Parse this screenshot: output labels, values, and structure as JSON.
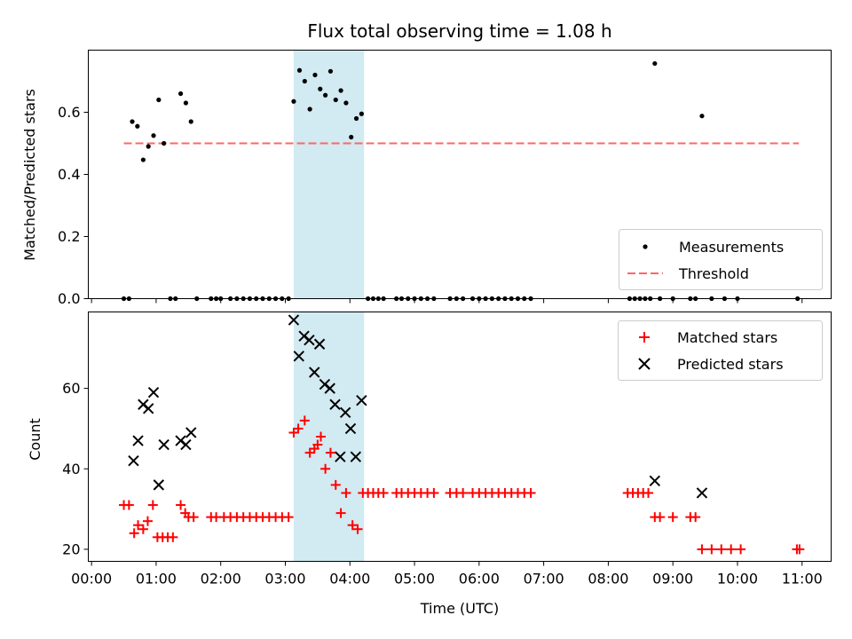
{
  "chart_data": [
    {
      "type": "scatter",
      "title": "Flux total observing time = 1.08 h",
      "ylabel": "Matched/Predicted stars",
      "xlabel": "",
      "ylim": [
        0,
        0.8
      ],
      "yticks": [
        0.0,
        0.2,
        0.4,
        0.6
      ],
      "ytick_labels": [
        "0.0",
        "0.2",
        "0.4",
        "0.6"
      ],
      "xlim_hours": [
        -0.05,
        11.45
      ],
      "highlight_span_hours": [
        3.13,
        4.22
      ],
      "highlight_color": "#add8e6",
      "threshold": {
        "name": "Threshold",
        "y": 0.5,
        "x_hours": [
          0.5,
          10.95
        ],
        "color": "#ff6666",
        "style": "dashed"
      },
      "legend": {
        "position": "lower-right",
        "entries": [
          "Measurements",
          "Threshold"
        ]
      },
      "series": [
        {
          "name": "Measurements",
          "color": "#000000",
          "marker": "dot",
          "points": [
            [
              0.5,
              0
            ],
            [
              0.58,
              0
            ],
            [
              0.63,
              0.57
            ],
            [
              0.71,
              0.555
            ],
            [
              0.8,
              0.447
            ],
            [
              0.88,
              0.49
            ],
            [
              0.96,
              0.525
            ],
            [
              1.04,
              0.64
            ],
            [
              1.12,
              0.5
            ],
            [
              1.22,
              0
            ],
            [
              1.3,
              0
            ],
            [
              1.38,
              0.66
            ],
            [
              1.46,
              0.63
            ],
            [
              1.54,
              0.57
            ],
            [
              1.63,
              0
            ],
            [
              1.85,
              0
            ],
            [
              1.93,
              0
            ],
            [
              2.0,
              0
            ],
            [
              2.15,
              0
            ],
            [
              2.25,
              0
            ],
            [
              2.35,
              0
            ],
            [
              2.45,
              0
            ],
            [
              2.55,
              0
            ],
            [
              2.65,
              0
            ],
            [
              2.75,
              0
            ],
            [
              2.85,
              0
            ],
            [
              2.95,
              0
            ],
            [
              3.05,
              0
            ],
            [
              3.13,
              0.635
            ],
            [
              3.22,
              0.735
            ],
            [
              3.3,
              0.7
            ],
            [
              3.38,
              0.61
            ],
            [
              3.46,
              0.72
            ],
            [
              3.54,
              0.675
            ],
            [
              3.62,
              0.655
            ],
            [
              3.7,
              0.732
            ],
            [
              3.78,
              0.64
            ],
            [
              3.86,
              0.67
            ],
            [
              3.94,
              0.63
            ],
            [
              4.02,
              0.52
            ],
            [
              4.1,
              0.58
            ],
            [
              4.18,
              0.595
            ],
            [
              4.28,
              0
            ],
            [
              4.36,
              0
            ],
            [
              4.44,
              0
            ],
            [
              4.52,
              0
            ],
            [
              4.72,
              0
            ],
            [
              4.8,
              0
            ],
            [
              4.9,
              0
            ],
            [
              5.0,
              0
            ],
            [
              5.1,
              0
            ],
            [
              5.2,
              0
            ],
            [
              5.3,
              0
            ],
            [
              5.55,
              0
            ],
            [
              5.65,
              0
            ],
            [
              5.75,
              0
            ],
            [
              5.9,
              0
            ],
            [
              6.0,
              0
            ],
            [
              6.1,
              0
            ],
            [
              6.2,
              0
            ],
            [
              6.3,
              0
            ],
            [
              6.4,
              0
            ],
            [
              6.5,
              0
            ],
            [
              6.6,
              0
            ],
            [
              6.7,
              0
            ],
            [
              6.8,
              0
            ],
            [
              8.33,
              0
            ],
            [
              8.41,
              0
            ],
            [
              8.49,
              0
            ],
            [
              8.57,
              0
            ],
            [
              8.65,
              0
            ],
            [
              8.72,
              0.757
            ],
            [
              8.8,
              0
            ],
            [
              9.0,
              0
            ],
            [
              9.27,
              0
            ],
            [
              9.35,
              0
            ],
            [
              9.45,
              0.588
            ],
            [
              9.6,
              0
            ],
            [
              9.8,
              0
            ],
            [
              10.0,
              0
            ],
            [
              10.93,
              0
            ]
          ]
        }
      ]
    },
    {
      "type": "scatter",
      "title": "",
      "ylabel": "Count",
      "xlabel": "Time (UTC)",
      "ylim": [
        17,
        79
      ],
      "yticks": [
        20,
        40,
        60
      ],
      "ytick_labels": [
        "20",
        "40",
        "60"
      ],
      "xlim_hours": [
        -0.05,
        11.45
      ],
      "xticks_hours": [
        0,
        1,
        2,
        3,
        4,
        5,
        6,
        7,
        8,
        9,
        10,
        11
      ],
      "xtick_labels": [
        "00:00",
        "01:00",
        "02:00",
        "03:00",
        "04:00",
        "05:00",
        "06:00",
        "07:00",
        "08:00",
        "09:00",
        "10:00",
        "11:00"
      ],
      "highlight_span_hours": [
        3.13,
        4.22
      ],
      "highlight_color": "#add8e6",
      "legend": {
        "position": "upper-right",
        "entries": [
          "Matched stars",
          "Predicted stars"
        ]
      },
      "series": [
        {
          "name": "Matched stars",
          "color": "#ff0000",
          "marker": "plus",
          "points": [
            [
              0.5,
              31
            ],
            [
              0.58,
              31
            ],
            [
              0.66,
              24
            ],
            [
              0.72,
              26
            ],
            [
              0.8,
              25
            ],
            [
              0.87,
              27
            ],
            [
              0.95,
              31
            ],
            [
              1.02,
              23
            ],
            [
              1.1,
              23
            ],
            [
              1.18,
              23
            ],
            [
              1.26,
              23
            ],
            [
              1.38,
              31
            ],
            [
              1.45,
              29
            ],
            [
              1.5,
              28
            ],
            [
              1.58,
              28
            ],
            [
              1.85,
              28
            ],
            [
              1.93,
              28
            ],
            [
              2.05,
              28
            ],
            [
              2.15,
              28
            ],
            [
              2.25,
              28
            ],
            [
              2.35,
              28
            ],
            [
              2.45,
              28
            ],
            [
              2.55,
              28
            ],
            [
              2.65,
              28
            ],
            [
              2.75,
              28
            ],
            [
              2.85,
              28
            ],
            [
              2.95,
              28
            ],
            [
              3.05,
              28
            ],
            [
              3.13,
              49
            ],
            [
              3.2,
              50
            ],
            [
              3.3,
              52
            ],
            [
              3.38,
              44
            ],
            [
              3.45,
              45
            ],
            [
              3.5,
              46
            ],
            [
              3.55,
              48
            ],
            [
              3.62,
              40
            ],
            [
              3.7,
              44
            ],
            [
              3.78,
              36
            ],
            [
              3.86,
              29
            ],
            [
              3.94,
              34
            ],
            [
              4.04,
              26
            ],
            [
              4.12,
              25
            ],
            [
              4.2,
              34
            ],
            [
              4.28,
              34
            ],
            [
              4.36,
              34
            ],
            [
              4.44,
              34
            ],
            [
              4.52,
              34
            ],
            [
              4.72,
              34
            ],
            [
              4.8,
              34
            ],
            [
              4.9,
              34
            ],
            [
              5.0,
              34
            ],
            [
              5.1,
              34
            ],
            [
              5.2,
              34
            ],
            [
              5.3,
              34
            ],
            [
              5.55,
              34
            ],
            [
              5.65,
              34
            ],
            [
              5.75,
              34
            ],
            [
              5.9,
              34
            ],
            [
              6.0,
              34
            ],
            [
              6.1,
              34
            ],
            [
              6.2,
              34
            ],
            [
              6.3,
              34
            ],
            [
              6.4,
              34
            ],
            [
              6.5,
              34
            ],
            [
              6.6,
              34
            ],
            [
              6.7,
              34
            ],
            [
              6.8,
              34
            ],
            [
              8.3,
              34
            ],
            [
              8.38,
              34
            ],
            [
              8.46,
              34
            ],
            [
              8.54,
              34
            ],
            [
              8.62,
              34
            ],
            [
              8.72,
              28
            ],
            [
              8.8,
              28
            ],
            [
              9.0,
              28
            ],
            [
              9.27,
              28
            ],
            [
              9.35,
              28
            ],
            [
              9.45,
              20
            ],
            [
              9.6,
              20
            ],
            [
              9.75,
              20
            ],
            [
              9.9,
              20
            ],
            [
              10.05,
              20
            ],
            [
              10.92,
              20
            ],
            [
              10.96,
              20
            ]
          ]
        },
        {
          "name": "Predicted stars",
          "color": "#000000",
          "marker": "x",
          "points": [
            [
              0.65,
              42
            ],
            [
              0.72,
              47
            ],
            [
              0.8,
              56
            ],
            [
              0.88,
              55
            ],
            [
              0.96,
              59
            ],
            [
              1.04,
              36
            ],
            [
              1.12,
              46
            ],
            [
              1.38,
              47
            ],
            [
              1.46,
              46
            ],
            [
              1.54,
              49
            ],
            [
              3.13,
              77
            ],
            [
              3.21,
              68
            ],
            [
              3.29,
              73
            ],
            [
              3.37,
              72
            ],
            [
              3.45,
              64
            ],
            [
              3.53,
              71
            ],
            [
              3.61,
              61
            ],
            [
              3.69,
              60
            ],
            [
              3.77,
              56
            ],
            [
              3.85,
              43
            ],
            [
              3.93,
              54
            ],
            [
              4.01,
              50
            ],
            [
              4.09,
              43
            ],
            [
              4.18,
              57
            ],
            [
              8.72,
              37
            ],
            [
              9.45,
              34
            ]
          ]
        }
      ]
    }
  ]
}
